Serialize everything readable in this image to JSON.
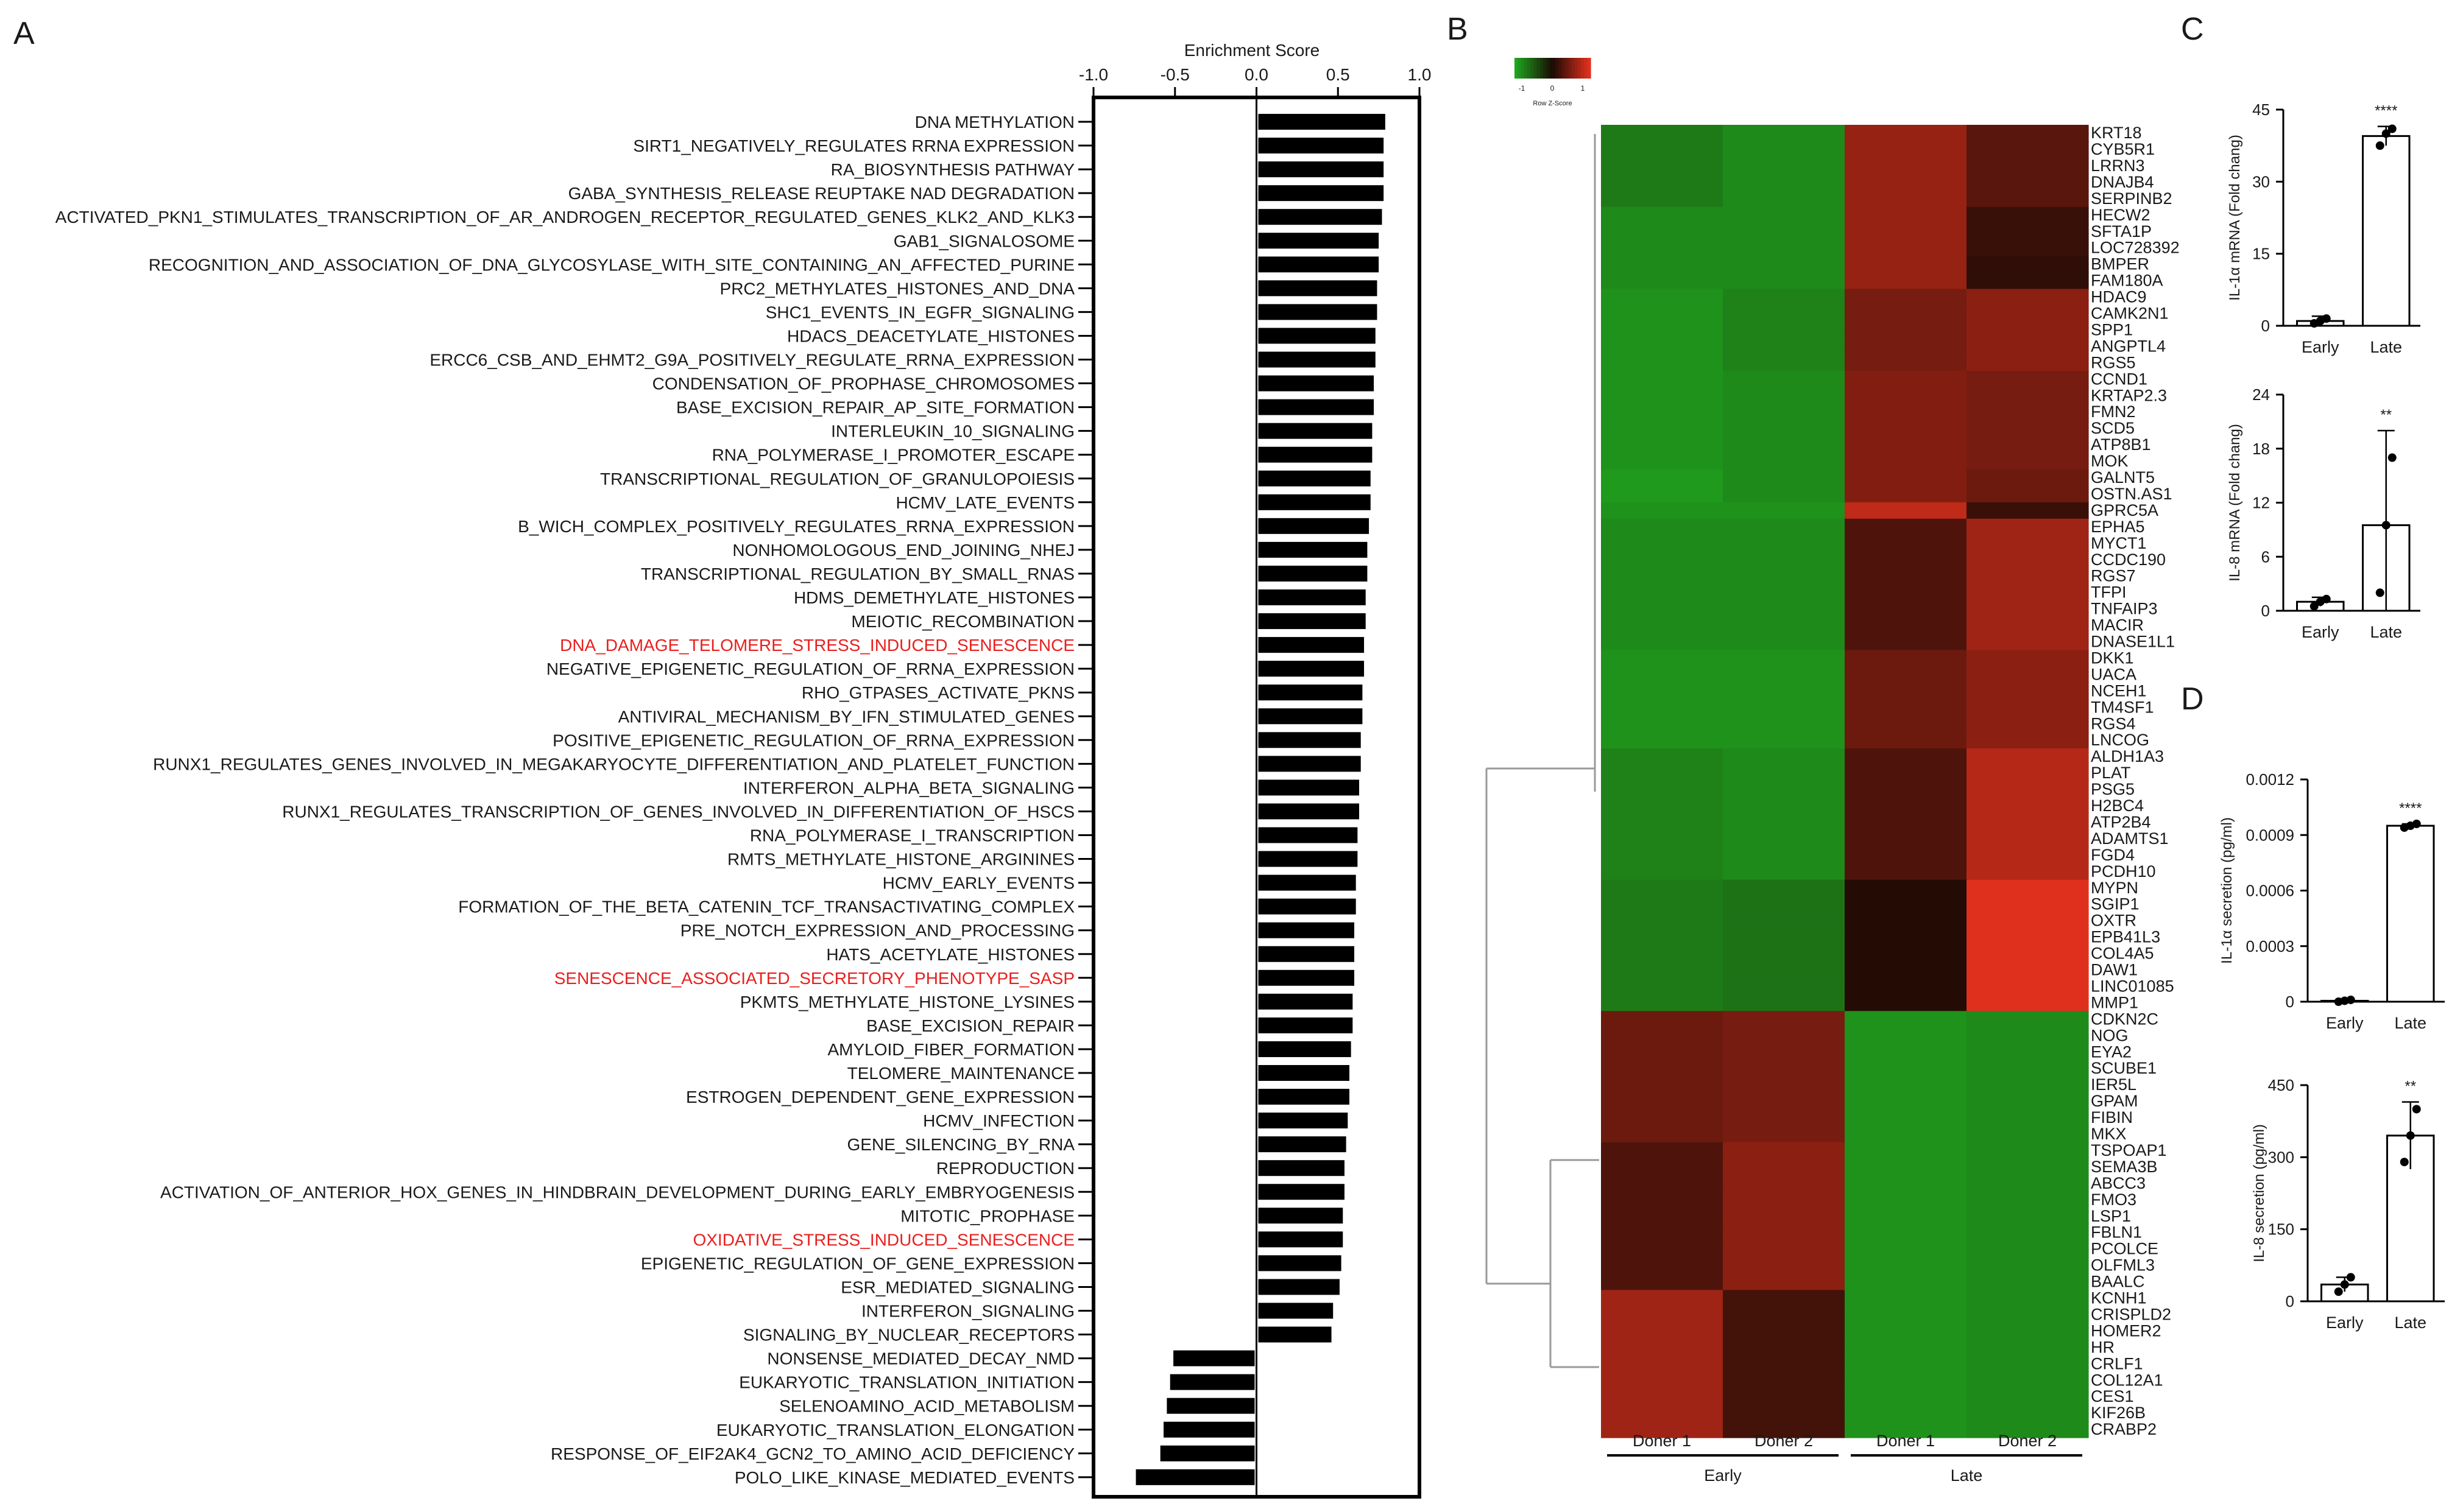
{
  "panel_labels": {
    "a": "A",
    "b": "B",
    "c": "C",
    "d": "D"
  },
  "colors": {
    "bar": "#000000",
    "highlight": "#e8201f",
    "text": "#1a1a1a",
    "heat_low": "#1faa1f",
    "heat_mid": "#1a0a04",
    "heat_high": "#e8321e",
    "line": "#000000"
  },
  "chart_data": [
    {
      "id": "A",
      "type": "bar",
      "orientation": "horizontal",
      "title": "Enrichment Score",
      "xlim": [
        -1.0,
        1.0
      ],
      "ticks": [
        -1.0,
        -0.5,
        0.0,
        0.5,
        1.0
      ],
      "tick_labels": [
        "-1.0",
        "-0.5",
        "0.0",
        "0.5",
        "1.0"
      ],
      "categories": [
        "DNA METHYLATION",
        "SIRT1_NEGATIVELY_REGULATES RRNA EXPRESSION",
        "RA_BIOSYNTHESIS PATHWAY",
        "GABA_SYNTHESIS_RELEASE REUPTAKE NAD DEGRADATION",
        "ACTIVATED_PKN1_STIMULATES_TRANSCRIPTION_OF_AR_ANDROGEN_RECEPTOR_REGULATED_GENES_KLK2_AND_KLK3",
        "GAB1_SIGNALOSOME",
        "RECOGNITION_AND_ASSOCIATION_OF_DNA_GLYCOSYLASE_WITH_SITE_CONTAINING_AN_AFFECTED_PURINE",
        "PRC2_METHYLATES_HISTONES_AND_DNA",
        "SHC1_EVENTS_IN_EGFR_SIGNALING",
        "HDACS_DEACETYLATE_HISTONES",
        "ERCC6_CSB_AND_EHMT2_G9A_POSITIVELY_REGULATE_RRNA_EXPRESSION",
        "CONDENSATION_OF_PROPHASE_CHROMOSOMES",
        "BASE_EXCISION_REPAIR_AP_SITE_FORMATION",
        "INTERLEUKIN_10_SIGNALING",
        "RNA_POLYMERASE_I_PROMOTER_ESCAPE",
        "TRANSCRIPTIONAL_REGULATION_OF_GRANULOPOIESIS",
        "HCMV_LATE_EVENTS",
        "B_WICH_COMPLEX_POSITIVELY_REGULATES_RRNA_EXPRESSION",
        "NONHOMOLOGOUS_END_JOINING_NHEJ",
        "TRANSCRIPTIONAL_REGULATION_BY_SMALL_RNAS",
        "HDMS_DEMETHYLATE_HISTONES",
        "MEIOTIC_RECOMBINATION",
        "DNA_DAMAGE_TELOMERE_STRESS_INDUCED_SENESCENCE",
        "NEGATIVE_EPIGENETIC_REGULATION_OF_RRNA_EXPRESSION",
        "RHO_GTPASES_ACTIVATE_PKNS",
        "ANTIVIRAL_MECHANISM_BY_IFN_STIMULATED_GENES",
        "POSITIVE_EPIGENETIC_REGULATION_OF_RRNA_EXPRESSION",
        "RUNX1_REGULATES_GENES_INVOLVED_IN_MEGAKARYOCYTE_DIFFERENTIATION_AND_PLATELET_FUNCTION",
        "INTERFERON_ALPHA_BETA_SIGNALING",
        "RUNX1_REGULATES_TRANSCRIPTION_OF_GENES_INVOLVED_IN_DIFFERENTIATION_OF_HSCS",
        "RNA_POLYMERASE_I_TRANSCRIPTION",
        "RMTS_METHYLATE_HISTONE_ARGININES",
        "HCMV_EARLY_EVENTS",
        "FORMATION_OF_THE_BETA_CATENIN_TCF_TRANSACTIVATING_COMPLEX",
        "PRE_NOTCH_EXPRESSION_AND_PROCESSING",
        "HATS_ACETYLATE_HISTONES",
        "SENESCENCE_ASSOCIATED_SECRETORY_PHENOTYPE_SASP",
        "PKMTS_METHYLATE_HISTONE_LYSINES",
        "BASE_EXCISION_REPAIR",
        "AMYLOID_FIBER_FORMATION",
        "TELOMERE_MAINTENANCE",
        "ESTROGEN_DEPENDENT_GENE_EXPRESSION",
        "HCMV_INFECTION",
        "GENE_SILENCING_BY_RNA",
        "REPRODUCTION",
        "ACTIVATION_OF_ANTERIOR_HOX_GENES_IN_HINDBRAIN_DEVELOPMENT_DURING_EARLY_EMBRYOGENESIS",
        "MITOTIC_PROPHASE",
        "OXIDATIVE_STRESS_INDUCED_SENESCENCE",
        "EPIGENETIC_REGULATION_OF_GENE_EXPRESSION",
        "ESR_MEDIATED_SIGNALING",
        "INTERFERON_SIGNALING",
        "SIGNALING_BY_NUCLEAR_RECEPTORS",
        "NONSENSE_MEDIATED_DECAY_NMD",
        "EUKARYOTIC_TRANSLATION_INITIATION",
        "SELENOAMINO_ACID_METABOLISM",
        "EUKARYOTIC_TRANSLATION_ELONGATION",
        "RESPONSE_OF_EIF2AK4_GCN2_TO_AMINO_ACID_DEFICIENCY",
        "POLO_LIKE_KINASE_MEDIATED_EVENTS"
      ],
      "highlighted": [
        "DNA_DAMAGE_TELOMERE_STRESS_INDUCED_SENESCENCE",
        "SENESCENCE_ASSOCIATED_SECRETORY_PHENOTYPE_SASP",
        "OXIDATIVE_STRESS_INDUCED_SENESCENCE"
      ],
      "values": [
        0.79,
        0.78,
        0.78,
        0.78,
        0.77,
        0.75,
        0.75,
        0.74,
        0.74,
        0.73,
        0.73,
        0.72,
        0.72,
        0.71,
        0.71,
        0.7,
        0.7,
        0.69,
        0.68,
        0.68,
        0.67,
        0.67,
        0.66,
        0.66,
        0.65,
        0.65,
        0.64,
        0.64,
        0.63,
        0.63,
        0.62,
        0.62,
        0.61,
        0.61,
        0.6,
        0.6,
        0.6,
        0.59,
        0.59,
        0.58,
        0.57,
        0.57,
        0.56,
        0.55,
        0.54,
        0.54,
        0.53,
        0.53,
        0.52,
        0.51,
        0.47,
        0.46,
        -0.51,
        -0.53,
        -0.55,
        -0.57,
        -0.59,
        -0.74
      ]
    },
    {
      "id": "B",
      "type": "heatmap",
      "legend_label": "Row Z-Score",
      "legend_ticks": [
        "-1",
        "0",
        "1"
      ],
      "columns": [
        "Doner 1",
        "Doner 2",
        "Doner 1",
        "Doner 2"
      ],
      "groups": [
        {
          "name": "Early",
          "span": [
            0,
            1
          ]
        },
        {
          "name": "Late",
          "span": [
            2,
            3
          ]
        }
      ],
      "rows": [
        "KRT18",
        "CYB5R1",
        "LRRN3",
        "DNAJB4",
        "SERPINB2",
        "HECW2",
        "SFTA1P",
        "LOC728392",
        "BMPER",
        "FAM180A",
        "HDAC9",
        "CAMK2N1",
        "SPP1",
        "ANGPTL4",
        "RGS5",
        "CCND1",
        "KRTAP2.3",
        "FMN2",
        "SCD5",
        "ATP8B1",
        "MOK",
        "GALNT5",
        "OSTN.AS1",
        "GPRC5A",
        "EPHA5",
        "MYCT1",
        "CCDC190",
        "RGS7",
        "TFPI",
        "TNFAIP3",
        "MACIR",
        "DNASE1L1",
        "DKK1",
        "UACA",
        "NCEH1",
        "TM4SF1",
        "RGS4",
        "LNCOG",
        "ALDH1A3",
        "PLAT",
        "PSG5",
        "H2BC4",
        "ATP2B4",
        "ADAMTS1",
        "FGD4",
        "PCDH10",
        "MYPN",
        "SGIP1",
        "OXTR",
        "EPB41L3",
        "COL4A5",
        "DAW1",
        "LINC01085",
        "MMP1",
        "CDKN2C",
        "NOG",
        "EYA2",
        "SCUBE1",
        "IER5L",
        "GPAM",
        "FIBIN",
        "MKX",
        "TSPOAP1",
        "SEMA3B",
        "ABCC3",
        "FMO3",
        "LSP1",
        "FBLN1",
        "PCOLCE",
        "OLFML3",
        "BAALC",
        "KCNH1",
        "CRISPLD2",
        "HOMER2",
        "HR",
        "CRLF1",
        "COL12A1",
        "CES1",
        "KIF26B",
        "CRABP2"
      ],
      "values": [
        [
          -0.7,
          -0.8,
          0.6,
          0.3
        ],
        [
          -0.7,
          -0.8,
          0.6,
          0.3
        ],
        [
          -0.7,
          -0.8,
          0.6,
          0.3
        ],
        [
          -0.7,
          -0.8,
          0.6,
          0.3
        ],
        [
          -0.7,
          -0.8,
          0.6,
          0.3
        ],
        [
          -0.8,
          -0.8,
          0.6,
          0.15
        ],
        [
          -0.8,
          -0.8,
          0.6,
          0.15
        ],
        [
          -0.8,
          -0.8,
          0.6,
          0.15
        ],
        [
          -0.8,
          -0.8,
          0.6,
          0.1
        ],
        [
          -0.8,
          -0.8,
          0.6,
          0.1
        ],
        [
          -0.85,
          -0.75,
          0.45,
          0.55
        ],
        [
          -0.85,
          -0.75,
          0.45,
          0.55
        ],
        [
          -0.85,
          -0.75,
          0.45,
          0.55
        ],
        [
          -0.85,
          -0.75,
          0.45,
          0.55
        ],
        [
          -0.85,
          -0.75,
          0.45,
          0.55
        ],
        [
          -0.85,
          -0.8,
          0.5,
          0.45
        ],
        [
          -0.85,
          -0.8,
          0.5,
          0.45
        ],
        [
          -0.85,
          -0.8,
          0.5,
          0.45
        ],
        [
          -0.85,
          -0.8,
          0.5,
          0.45
        ],
        [
          -0.85,
          -0.8,
          0.5,
          0.45
        ],
        [
          -0.85,
          -0.8,
          0.5,
          0.45
        ],
        [
          -0.9,
          -0.8,
          0.5,
          0.4
        ],
        [
          -0.9,
          -0.8,
          0.5,
          0.4
        ],
        [
          -0.85,
          -0.85,
          0.8,
          0.15
        ],
        [
          -0.8,
          -0.8,
          0.25,
          0.65
        ],
        [
          -0.8,
          -0.8,
          0.25,
          0.65
        ],
        [
          -0.8,
          -0.8,
          0.25,
          0.65
        ],
        [
          -0.8,
          -0.8,
          0.25,
          0.65
        ],
        [
          -0.8,
          -0.8,
          0.25,
          0.65
        ],
        [
          -0.8,
          -0.8,
          0.25,
          0.65
        ],
        [
          -0.8,
          -0.8,
          0.25,
          0.65
        ],
        [
          -0.8,
          -0.8,
          0.25,
          0.65
        ],
        [
          -0.85,
          -0.85,
          0.4,
          0.55
        ],
        [
          -0.85,
          -0.85,
          0.4,
          0.55
        ],
        [
          -0.85,
          -0.85,
          0.4,
          0.55
        ],
        [
          -0.85,
          -0.85,
          0.4,
          0.55
        ],
        [
          -0.85,
          -0.85,
          0.4,
          0.55
        ],
        [
          -0.85,
          -0.85,
          0.4,
          0.55
        ],
        [
          -0.75,
          -0.8,
          0.25,
          0.75
        ],
        [
          -0.75,
          -0.8,
          0.25,
          0.75
        ],
        [
          -0.75,
          -0.8,
          0.25,
          0.75
        ],
        [
          -0.75,
          -0.8,
          0.25,
          0.75
        ],
        [
          -0.75,
          -0.8,
          0.25,
          0.75
        ],
        [
          -0.75,
          -0.8,
          0.25,
          0.75
        ],
        [
          -0.75,
          -0.8,
          0.25,
          0.75
        ],
        [
          -0.75,
          -0.8,
          0.25,
          0.75
        ],
        [
          -0.7,
          -0.65,
          0.05,
          0.95
        ],
        [
          -0.7,
          -0.65,
          0.05,
          0.95
        ],
        [
          -0.7,
          -0.65,
          0.05,
          0.95
        ],
        [
          -0.7,
          -0.65,
          0.05,
          0.95
        ],
        [
          -0.7,
          -0.65,
          0.05,
          0.95
        ],
        [
          -0.7,
          -0.65,
          0.05,
          0.95
        ],
        [
          -0.7,
          -0.65,
          0.05,
          0.95
        ],
        [
          -0.7,
          -0.65,
          0.05,
          0.95
        ],
        [
          0.4,
          0.45,
          -0.85,
          -0.8
        ],
        [
          0.4,
          0.45,
          -0.85,
          -0.8
        ],
        [
          0.4,
          0.45,
          -0.85,
          -0.8
        ],
        [
          0.4,
          0.45,
          -0.85,
          -0.8
        ],
        [
          0.4,
          0.45,
          -0.85,
          -0.8
        ],
        [
          0.4,
          0.45,
          -0.85,
          -0.8
        ],
        [
          0.4,
          0.45,
          -0.85,
          -0.8
        ],
        [
          0.4,
          0.45,
          -0.85,
          -0.8
        ],
        [
          0.25,
          0.55,
          -0.85,
          -0.8
        ],
        [
          0.25,
          0.55,
          -0.85,
          -0.8
        ],
        [
          0.25,
          0.55,
          -0.85,
          -0.8
        ],
        [
          0.25,
          0.55,
          -0.85,
          -0.8
        ],
        [
          0.25,
          0.55,
          -0.85,
          -0.8
        ],
        [
          0.25,
          0.55,
          -0.85,
          -0.8
        ],
        [
          0.25,
          0.55,
          -0.85,
          -0.8
        ],
        [
          0.25,
          0.55,
          -0.85,
          -0.8
        ],
        [
          0.25,
          0.55,
          -0.85,
          -0.8
        ],
        [
          0.65,
          0.2,
          -0.85,
          -0.8
        ],
        [
          0.65,
          0.2,
          -0.85,
          -0.8
        ],
        [
          0.65,
          0.2,
          -0.85,
          -0.8
        ],
        [
          0.65,
          0.2,
          -0.85,
          -0.8
        ],
        [
          0.65,
          0.2,
          -0.85,
          -0.8
        ],
        [
          0.65,
          0.2,
          -0.85,
          -0.8
        ],
        [
          0.65,
          0.2,
          -0.85,
          -0.8
        ],
        [
          0.65,
          0.2,
          -0.85,
          -0.8
        ],
        [
          0.65,
          0.2,
          -0.85,
          -0.8
        ]
      ]
    },
    {
      "id": "C-top",
      "type": "bar",
      "categories": [
        "Early",
        "Late"
      ],
      "values": [
        1,
        39.5
      ],
      "errors": [
        1,
        2
      ],
      "points": [
        [
          0.5,
          1.0,
          1.5
        ],
        [
          37.5,
          40,
          41
        ]
      ],
      "ylabel": "IL-1α mRNA (Fold chang)",
      "ylim": [
        0,
        45
      ],
      "ticks": [
        0,
        15,
        30,
        45
      ],
      "tick_labels": [
        "0",
        "15",
        "30",
        "45"
      ],
      "significance": "****"
    },
    {
      "id": "C-bottom",
      "type": "bar",
      "categories": [
        "Early",
        "Late"
      ],
      "values": [
        1,
        9.5
      ],
      "errors": [
        0.5,
        10.5
      ],
      "points": [
        [
          0.5,
          1.0,
          1.3
        ],
        [
          2,
          9.5,
          17
        ]
      ],
      "ylabel": "IL-8  mRNA (Fold chang)",
      "ylim": [
        0,
        24
      ],
      "ticks": [
        0,
        6,
        12,
        18,
        24
      ],
      "tick_labels": [
        "0",
        "6",
        "12",
        "18",
        "24"
      ],
      "significance": "**"
    },
    {
      "id": "D-top",
      "type": "bar",
      "categories": [
        "Early",
        "Late"
      ],
      "values": [
        5e-06,
        0.00095
      ],
      "errors": [
        5e-06,
        1e-05
      ],
      "points": [
        [
          0.0,
          5e-06,
          1e-05
        ],
        [
          0.00094,
          0.00095,
          0.00096
        ]
      ],
      "ylabel": "IL-1α secretion (pg/ml)",
      "ylim": [
        0,
        0.0012
      ],
      "ticks": [
        0,
        0.0003,
        0.0006,
        0.0009,
        0.0012
      ],
      "tick_labels": [
        "0",
        "0.0003",
        "0.0006",
        "0.0009",
        "0.0012"
      ],
      "significance": "****"
    },
    {
      "id": "D-bottom",
      "type": "bar",
      "categories": [
        "Early",
        "Late"
      ],
      "values": [
        35,
        345
      ],
      "errors": [
        15,
        70
      ],
      "points": [
        [
          20,
          35,
          50
        ],
        [
          290,
          345,
          400
        ]
      ],
      "ylabel": "IL-8 secretion (pg/ml)",
      "ylim": [
        0,
        450
      ],
      "ticks": [
        0,
        150,
        300,
        450
      ],
      "tick_labels": [
        "0",
        "150",
        "300",
        "450"
      ],
      "significance": "**"
    }
  ]
}
